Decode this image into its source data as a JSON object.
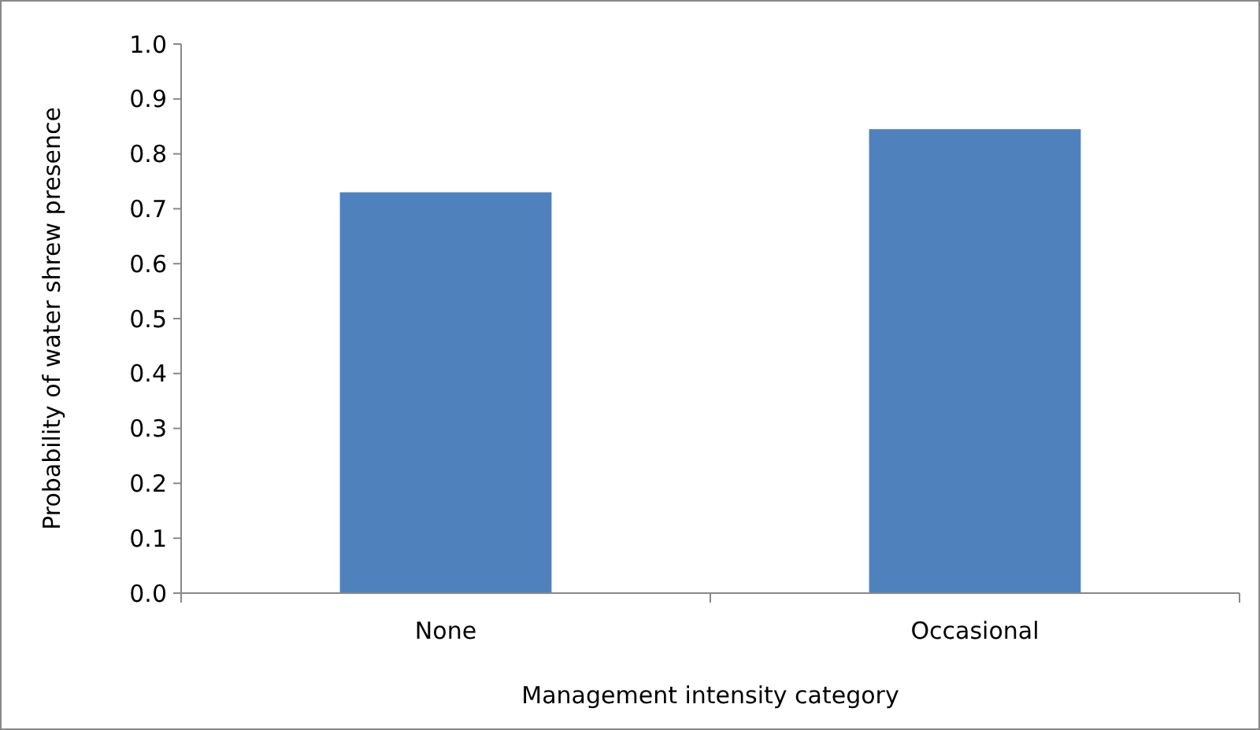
{
  "chart_data": {
    "type": "bar",
    "xlabel": "Management intensity category",
    "ylabel": "Probability of water shrew presence",
    "categories": [
      "None",
      "Occasional"
    ],
    "values": [
      0.73,
      0.845
    ],
    "color": "#4f81bd",
    "ylim": [
      0,
      1
    ],
    "yticks": [
      {
        "value": 0,
        "label": "0.0"
      },
      0.1,
      0.2,
      0.3,
      0.4,
      0.5,
      0.6,
      0.7,
      0.8,
      0.9,
      {
        "value": 1,
        "label": "1.0"
      }
    ],
    "grid": false
  }
}
